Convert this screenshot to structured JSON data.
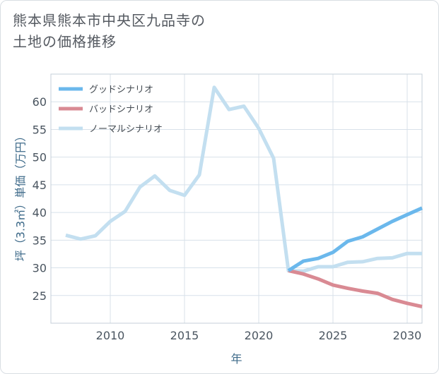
{
  "title": {
    "line1": "熊本県熊本市中央区九品寺の",
    "line2": "土地の価格推移"
  },
  "colors": {
    "good": "#6bb8ec",
    "bad": "#d98a93",
    "normal": "#c3dff0",
    "grid": "#d8e1ea",
    "axis_text": "#4a5560",
    "axis_label": "#3f6b8a"
  },
  "chart_data": {
    "type": "line",
    "xlabel": "年",
    "ylabel": "坪（3.3㎡）単価（万円）",
    "xlim": [
      2006,
      2031
    ],
    "ylim": [
      20,
      65
    ],
    "xticks": [
      2010,
      2015,
      2020,
      2025,
      2030
    ],
    "yticks": [
      25,
      30,
      35,
      40,
      45,
      50,
      55,
      60
    ],
    "grid": true,
    "legend_position": "top-left",
    "series": [
      {
        "key": "good",
        "name": "グッドシナリオ",
        "x": [
          2022,
          2023,
          2024,
          2025,
          2026,
          2027,
          2028,
          2029,
          2030,
          2031
        ],
        "y": [
          29.5,
          31.2,
          31.7,
          32.8,
          34.8,
          35.6,
          37.0,
          38.4,
          39.6,
          40.8
        ]
      },
      {
        "key": "bad",
        "name": "バッドシナリオ",
        "x": [
          2022,
          2023,
          2024,
          2025,
          2026,
          2027,
          2028,
          2029,
          2030,
          2031
        ],
        "y": [
          29.5,
          28.9,
          28.0,
          26.9,
          26.3,
          25.8,
          25.4,
          24.3,
          23.6,
          23.0
        ]
      },
      {
        "key": "normal",
        "name": "ノーマルシナリオ",
        "x": [
          2007,
          2008,
          2009,
          2010,
          2011,
          2012,
          2013,
          2014,
          2015,
          2016,
          2017,
          2018,
          2019,
          2020,
          2021,
          2022,
          2023,
          2024,
          2025,
          2026,
          2027,
          2028,
          2029,
          2030,
          2031
        ],
        "y": [
          35.9,
          35.2,
          35.8,
          38.4,
          40.2,
          44.6,
          46.6,
          44.0,
          43.1,
          46.8,
          62.6,
          58.6,
          59.2,
          55.2,
          49.8,
          29.5,
          29.4,
          30.2,
          30.2,
          31.0,
          31.1,
          31.7,
          31.8,
          32.6,
          32.6
        ]
      }
    ]
  }
}
